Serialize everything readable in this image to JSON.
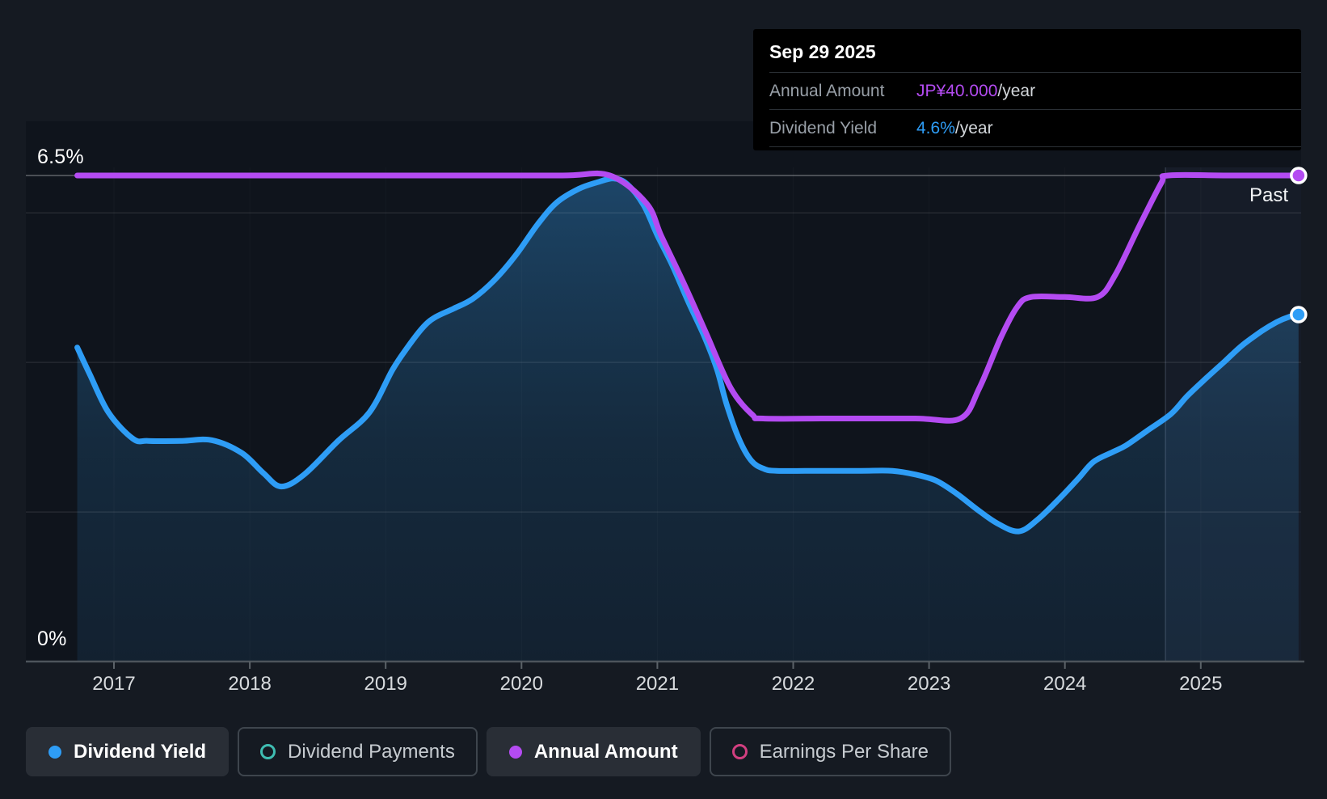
{
  "tooltip": {
    "date": "Sep 29 2025",
    "rows": [
      {
        "label": "Annual Amount",
        "value": "JP¥40.000",
        "suffix": "/year",
        "color": "#b44bf2"
      },
      {
        "label": "Dividend Yield",
        "value": "4.6%",
        "suffix": "/year",
        "color": "#2e9df6"
      }
    ]
  },
  "chart": {
    "y_top_label": "6.5%",
    "y_bottom_label": "0%",
    "past_label": "Past"
  },
  "legend": {
    "items": [
      {
        "label": "Dividend Yield",
        "marker": "dot",
        "color": "#2e9df6",
        "active": true
      },
      {
        "label": "Dividend Payments",
        "marker": "ring",
        "color": "#3fbdb2",
        "active": false
      },
      {
        "label": "Annual Amount",
        "marker": "dot",
        "color": "#b44bf2",
        "active": true
      },
      {
        "label": "Earnings Per Share",
        "marker": "ring",
        "color": "#d23f80",
        "active": false
      }
    ]
  },
  "chart_data": {
    "type": "line",
    "title": "Dividend yield and annual dividend amount history",
    "x_axis": {
      "ticks": [
        2017,
        2018,
        2019,
        2020,
        2021,
        2022,
        2023,
        2024,
        2025
      ],
      "range": [
        2016.35,
        2025.73
      ]
    },
    "y_axis": {
      "top_label": "6.5%",
      "bottom_label": "0%",
      "range_pct": [
        0,
        6.5
      ],
      "unlabeled_gridlines_pct": [
        2,
        4,
        6
      ],
      "top_gridline_pct": 6.5
    },
    "amount_scale": {
      "jpy_at_top": 40,
      "pct_equiv_at_top": 6.5
    },
    "past_band_start_year": 2024.74,
    "legend_position": "bottom",
    "series": [
      {
        "name": "Dividend Yield",
        "unit": "%",
        "color": "#2e9df6",
        "marker_end": true,
        "points": [
          [
            2016.73,
            4.2
          ],
          [
            2016.82,
            3.85
          ],
          [
            2016.96,
            3.33
          ],
          [
            2017.14,
            2.98
          ],
          [
            2017.25,
            2.95
          ],
          [
            2017.5,
            2.95
          ],
          [
            2017.72,
            2.96
          ],
          [
            2017.94,
            2.79
          ],
          [
            2018.1,
            2.52
          ],
          [
            2018.23,
            2.34
          ],
          [
            2018.4,
            2.5
          ],
          [
            2018.65,
            2.95
          ],
          [
            2018.88,
            3.33
          ],
          [
            2019.05,
            3.9
          ],
          [
            2019.16,
            4.2
          ],
          [
            2019.28,
            4.48
          ],
          [
            2019.37,
            4.61
          ],
          [
            2019.5,
            4.72
          ],
          [
            2019.64,
            4.85
          ],
          [
            2019.8,
            5.1
          ],
          [
            2019.96,
            5.44
          ],
          [
            2020.12,
            5.85
          ],
          [
            2020.26,
            6.14
          ],
          [
            2020.42,
            6.32
          ],
          [
            2020.56,
            6.41
          ],
          [
            2020.68,
            6.46
          ],
          [
            2020.78,
            6.38
          ],
          [
            2020.9,
            6.1
          ],
          [
            2021.0,
            5.7
          ],
          [
            2021.11,
            5.3
          ],
          [
            2021.23,
            4.8
          ],
          [
            2021.35,
            4.33
          ],
          [
            2021.44,
            3.9
          ],
          [
            2021.51,
            3.44
          ],
          [
            2021.6,
            2.98
          ],
          [
            2021.69,
            2.69
          ],
          [
            2021.78,
            2.58
          ],
          [
            2021.88,
            2.55
          ],
          [
            2022.2,
            2.55
          ],
          [
            2022.5,
            2.55
          ],
          [
            2022.73,
            2.55
          ],
          [
            2022.9,
            2.5
          ],
          [
            2023.05,
            2.42
          ],
          [
            2023.2,
            2.25
          ],
          [
            2023.35,
            2.04
          ],
          [
            2023.5,
            1.85
          ],
          [
            2023.66,
            1.74
          ],
          [
            2023.8,
            1.9
          ],
          [
            2023.96,
            2.18
          ],
          [
            2024.1,
            2.45
          ],
          [
            2024.21,
            2.67
          ],
          [
            2024.35,
            2.8
          ],
          [
            2024.45,
            2.89
          ],
          [
            2024.6,
            3.08
          ],
          [
            2024.78,
            3.31
          ],
          [
            2024.9,
            3.55
          ],
          [
            2025.04,
            3.79
          ],
          [
            2025.18,
            4.02
          ],
          [
            2025.3,
            4.22
          ],
          [
            2025.45,
            4.42
          ],
          [
            2025.56,
            4.54
          ],
          [
            2025.65,
            4.61
          ],
          [
            2025.72,
            4.64
          ]
        ]
      },
      {
        "name": "Annual Amount",
        "unit": "JP¥/year",
        "color": "#b44bf2",
        "marker_end": true,
        "points": [
          [
            2016.73,
            40
          ],
          [
            2018.5,
            40
          ],
          [
            2019.5,
            40
          ],
          [
            2020.3,
            40
          ],
          [
            2020.65,
            40
          ],
          [
            2020.92,
            37.7
          ],
          [
            2021.03,
            35.0
          ],
          [
            2021.2,
            31.0
          ],
          [
            2021.36,
            27.0
          ],
          [
            2021.54,
            22.5
          ],
          [
            2021.7,
            20.3
          ],
          [
            2021.78,
            20.0
          ],
          [
            2022.3,
            20.0
          ],
          [
            2022.9,
            20.0
          ],
          [
            2023.23,
            20.0
          ],
          [
            2023.37,
            22.5
          ],
          [
            2023.53,
            26.7
          ],
          [
            2023.65,
            29.2
          ],
          [
            2023.75,
            30.0
          ],
          [
            2024.0,
            30.0
          ],
          [
            2024.24,
            30.0
          ],
          [
            2024.37,
            31.8
          ],
          [
            2024.55,
            35.9
          ],
          [
            2024.71,
            39.4
          ],
          [
            2024.76,
            40.0
          ],
          [
            2025.2,
            40.0
          ],
          [
            2025.72,
            40.0
          ]
        ]
      }
    ]
  }
}
